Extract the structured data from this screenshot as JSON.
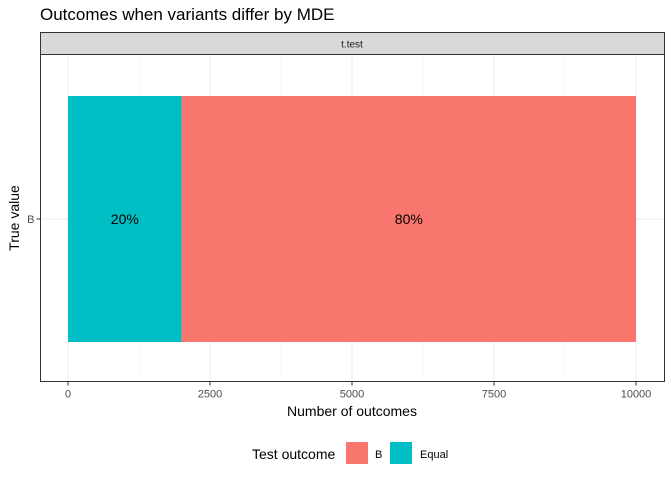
{
  "chart_data": {
    "type": "bar",
    "orientation": "horizontal",
    "stacked": true,
    "title": "Outcomes when variants differ by MDE",
    "facet_label": "t.test",
    "xlabel": "Number of outcomes",
    "ylabel": "True value",
    "categories": [
      "B"
    ],
    "xlim": [
      0,
      10000
    ],
    "x_ticks": [
      0,
      2500,
      5000,
      7500,
      10000
    ],
    "x_tick_labels": [
      "0",
      "2500",
      "5000",
      "7500",
      "10000"
    ],
    "series": [
      {
        "name": "Equal",
        "values": [
          2000
        ],
        "label": "20%",
        "color": "#00BFC4"
      },
      {
        "name": "B",
        "values": [
          8000
        ],
        "label": "80%",
        "color": "#F8766D"
      }
    ],
    "legend": {
      "title": "Test outcome",
      "position": "bottom",
      "entries": [
        {
          "label": "B",
          "color": "#F8766D"
        },
        {
          "label": "Equal",
          "color": "#00BFC4"
        }
      ]
    },
    "grid": true
  }
}
